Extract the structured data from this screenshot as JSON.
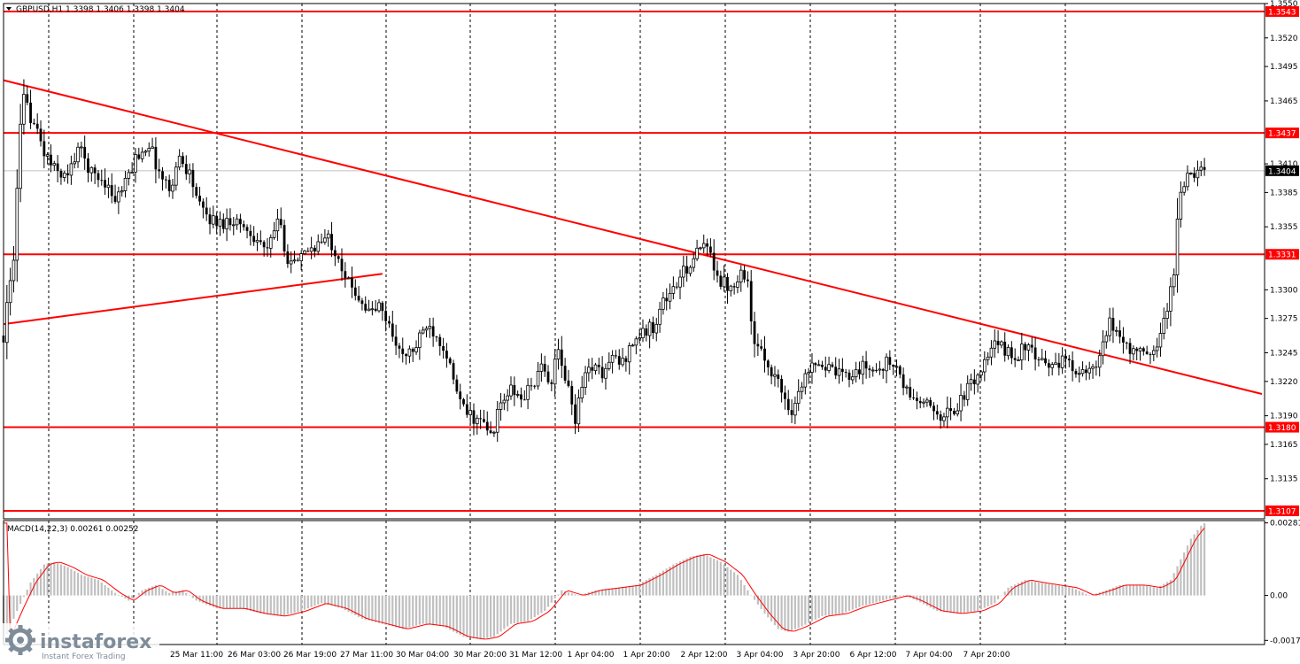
{
  "colors": {
    "background": "#ffffff",
    "candle": "#000000",
    "level_line": "#ff0000",
    "trend_line": "#ff0000",
    "badge_bg": "#ff0000",
    "badge_text": "#ffffff",
    "price_badge_bg": "#000000",
    "grid": "#000000",
    "macd_hist": "#c0c0c0",
    "macd_signal": "#ff0000"
  },
  "watermark": {
    "brand": "instaforex",
    "tagline": "Instant Forex Trading"
  },
  "chart_data": {
    "type": "candlestick",
    "symbol_header": "GBPUSD,H1  1.3398 1.3406 1.3398 1.3404",
    "current_price": "1.3404",
    "y_axis": {
      "ticks": [
        "1.3550",
        "1.3520",
        "1.3495",
        "1.3465",
        "1.3410",
        "1.3385",
        "1.3355",
        "1.3300",
        "1.3275",
        "1.3245",
        "1.3220",
        "1.3190",
        "1.3165",
        "1.3135"
      ],
      "ylim": [
        1.31,
        1.355
      ]
    },
    "x_axis": {
      "ticks": [
        "25 Mar 11:00",
        "26 Mar 03:00",
        "26 Mar 19:00",
        "27 Mar 11:00",
        "30 Mar 04:00",
        "30 Mar 20:00",
        "31 Mar 12:00",
        "1 Apr 04:00",
        "1 Apr 20:00",
        "2 Apr 12:00",
        "3 Apr 04:00",
        "3 Apr 20:00",
        "6 Apr 12:00",
        "7 Apr 04:00",
        "7 Apr 20:00"
      ]
    },
    "levels": [
      {
        "label": "1.3543",
        "value": 1.3543
      },
      {
        "label": "1.3437",
        "value": 1.3437
      },
      {
        "label": "1.3331",
        "value": 1.3331
      },
      {
        "label": "1.3180",
        "value": 1.318
      },
      {
        "label": "1.3107",
        "value": 1.3107
      }
    ],
    "trendlines": [
      {
        "from": [
          0,
          1.3483
        ],
        "to": [
          372,
          1.3209
        ]
      },
      {
        "from": [
          0,
          1.327
        ],
        "to": [
          112,
          1.3314
        ]
      }
    ],
    "close_path": [
      [
        0,
        1.326
      ],
      [
        3,
        1.333
      ],
      [
        5,
        1.344
      ],
      [
        6,
        1.3465
      ],
      [
        9,
        1.3445
      ],
      [
        12,
        1.342
      ],
      [
        15,
        1.3405
      ],
      [
        19,
        1.3398
      ],
      [
        22,
        1.3425
      ],
      [
        26,
        1.3402
      ],
      [
        30,
        1.3395
      ],
      [
        33,
        1.3378
      ],
      [
        36,
        1.3392
      ],
      [
        39,
        1.3415
      ],
      [
        43,
        1.3428
      ],
      [
        46,
        1.3402
      ],
      [
        49,
        1.3388
      ],
      [
        52,
        1.3415
      ],
      [
        55,
        1.3402
      ],
      [
        58,
        1.3372
      ],
      [
        61,
        1.3362
      ],
      [
        64,
        1.3358
      ],
      [
        68,
        1.3362
      ],
      [
        71,
        1.3355
      ],
      [
        75,
        1.3345
      ],
      [
        78,
        1.3332
      ],
      [
        81,
        1.3362
      ],
      [
        84,
        1.3328
      ],
      [
        87,
        1.3322
      ],
      [
        90,
        1.3335
      ],
      [
        93,
        1.334
      ],
      [
        96,
        1.3345
      ],
      [
        99,
        1.333
      ],
      [
        102,
        1.3305
      ],
      [
        105,
        1.3295
      ],
      [
        108,
        1.328
      ],
      [
        111,
        1.3285
      ],
      [
        113,
        1.3275
      ],
      [
        116,
        1.3255
      ],
      [
        118,
        1.324
      ],
      [
        122,
        1.325
      ],
      [
        125,
        1.327
      ],
      [
        128,
        1.3262
      ],
      [
        131,
        1.3245
      ],
      [
        133,
        1.3218
      ],
      [
        136,
        1.3195
      ],
      [
        139,
        1.3188
      ],
      [
        142,
        1.3182
      ],
      [
        144,
        1.3172
      ],
      [
        147,
        1.32
      ],
      [
        150,
        1.3212
      ],
      [
        153,
        1.3204
      ],
      [
        156,
        1.3216
      ],
      [
        159,
        1.323
      ],
      [
        162,
        1.3222
      ],
      [
        164,
        1.3245
      ],
      [
        167,
        1.3212
      ],
      [
        169,
        1.3188
      ],
      [
        171,
        1.322
      ],
      [
        174,
        1.3235
      ],
      [
        177,
        1.3226
      ],
      [
        180,
        1.324
      ],
      [
        183,
        1.3236
      ],
      [
        186,
        1.3255
      ],
      [
        189,
        1.3262
      ],
      [
        192,
        1.3268
      ],
      [
        195,
        1.329
      ],
      [
        198,
        1.33
      ],
      [
        201,
        1.3315
      ],
      [
        204,
        1.3328
      ],
      [
        207,
        1.3338
      ],
      [
        209,
        1.333
      ],
      [
        212,
        1.3308
      ],
      [
        215,
        1.3302
      ],
      [
        218,
        1.3318
      ],
      [
        220,
        1.3305
      ],
      [
        222,
        1.325
      ],
      [
        225,
        1.324
      ],
      [
        228,
        1.3225
      ],
      [
        231,
        1.3205
      ],
      [
        233,
        1.3195
      ],
      [
        236,
        1.3215
      ],
      [
        239,
        1.324
      ],
      [
        242,
        1.3235
      ],
      [
        245,
        1.3228
      ],
      [
        248,
        1.3224
      ],
      [
        251,
        1.3228
      ],
      [
        254,
        1.3232
      ],
      [
        258,
        1.323
      ],
      [
        261,
        1.3236
      ],
      [
        264,
        1.3232
      ],
      [
        266,
        1.3215
      ],
      [
        269,
        1.3205
      ],
      [
        272,
        1.32
      ],
      [
        275,
        1.3195
      ],
      [
        278,
        1.319
      ],
      [
        281,
        1.3195
      ],
      [
        284,
        1.3208
      ],
      [
        287,
        1.3222
      ],
      [
        290,
        1.3235
      ],
      [
        293,
        1.3252
      ],
      [
        296,
        1.3248
      ],
      [
        299,
        1.324
      ],
      [
        302,
        1.3252
      ],
      [
        305,
        1.324
      ],
      [
        308,
        1.3232
      ],
      [
        311,
        1.3238
      ],
      [
        314,
        1.3236
      ],
      [
        317,
        1.3232
      ],
      [
        320,
        1.3225
      ],
      [
        323,
        1.3232
      ],
      [
        325,
        1.325
      ],
      [
        327,
        1.327
      ],
      [
        330,
        1.326
      ],
      [
        333,
        1.3248
      ],
      [
        336,
        1.3245
      ],
      [
        339,
        1.324
      ],
      [
        342,
        1.3262
      ],
      [
        344,
        1.3285
      ],
      [
        346,
        1.3315
      ],
      [
        347,
        1.336
      ],
      [
        348,
        1.3388
      ],
      [
        350,
        1.34
      ],
      [
        352,
        1.3396
      ],
      [
        353,
        1.3405
      ],
      [
        355,
        1.3404
      ]
    ],
    "macd": {
      "label": "MACD(14,22,3) 0.00261 0.00252",
      "ticks": [
        "0.00281",
        "0.00",
        "-0.00174"
      ],
      "ylim": [
        -0.0019,
        0.0029
      ],
      "points": [
        [
          0,
          -0.0018
        ],
        [
          4,
          -0.0006
        ],
        [
          8,
          0.0005
        ],
        [
          12,
          0.0012
        ],
        [
          15,
          0.0013
        ],
        [
          19,
          0.0011
        ],
        [
          23,
          0.0008
        ],
        [
          28,
          0.0006
        ],
        [
          33,
          0.0001
        ],
        [
          37,
          -0.0002
        ],
        [
          41,
          0.0002
        ],
        [
          45,
          0.0004
        ],
        [
          49,
          0.0001
        ],
        [
          53,
          0.0002
        ],
        [
          57,
          -0.0002
        ],
        [
          63,
          -0.0005
        ],
        [
          70,
          -0.0005
        ],
        [
          76,
          -0.0007
        ],
        [
          82,
          -0.0008
        ],
        [
          88,
          -0.0006
        ],
        [
          94,
          -0.0003
        ],
        [
          100,
          -0.0005
        ],
        [
          106,
          -0.0009
        ],
        [
          112,
          -0.0011
        ],
        [
          118,
          -0.0013
        ],
        [
          124,
          -0.0011
        ],
        [
          130,
          -0.0012
        ],
        [
          136,
          -0.0016
        ],
        [
          141,
          -0.0017
        ],
        [
          145,
          -0.0016
        ],
        [
          150,
          -0.0011
        ],
        [
          155,
          -0.001
        ],
        [
          160,
          -0.0006
        ],
        [
          165,
          0.0002
        ],
        [
          170,
          0.0
        ],
        [
          175,
          0.0002
        ],
        [
          181,
          0.0003
        ],
        [
          187,
          0.0004
        ],
        [
          193,
          0.0008
        ],
        [
          198,
          0.0012
        ],
        [
          203,
          0.0015
        ],
        [
          207,
          0.0016
        ],
        [
          212,
          0.0013
        ],
        [
          217,
          0.0008
        ],
        [
          221,
          0.0
        ],
        [
          225,
          -0.0007
        ],
        [
          229,
          -0.0013
        ],
        [
          232,
          -0.0014
        ],
        [
          236,
          -0.0012
        ],
        [
          242,
          -0.0008
        ],
        [
          248,
          -0.0007
        ],
        [
          254,
          -0.0004
        ],
        [
          260,
          -0.0002
        ],
        [
          266,
          0.0
        ],
        [
          270,
          -0.0002
        ],
        [
          276,
          -0.0006
        ],
        [
          282,
          -0.0007
        ],
        [
          288,
          -0.0006
        ],
        [
          293,
          -0.0003
        ],
        [
          297,
          0.0003
        ],
        [
          302,
          0.0006
        ],
        [
          306,
          0.0005
        ],
        [
          311,
          0.0004
        ],
        [
          316,
          0.0003
        ],
        [
          321,
          0.0
        ],
        [
          326,
          0.0002
        ],
        [
          330,
          0.0004
        ],
        [
          336,
          0.0004
        ],
        [
          341,
          0.0003
        ],
        [
          345,
          0.0006
        ],
        [
          348,
          0.0014
        ],
        [
          351,
          0.0022
        ],
        [
          354,
          0.0027
        ],
        [
          355,
          0.0028
        ]
      ]
    }
  }
}
